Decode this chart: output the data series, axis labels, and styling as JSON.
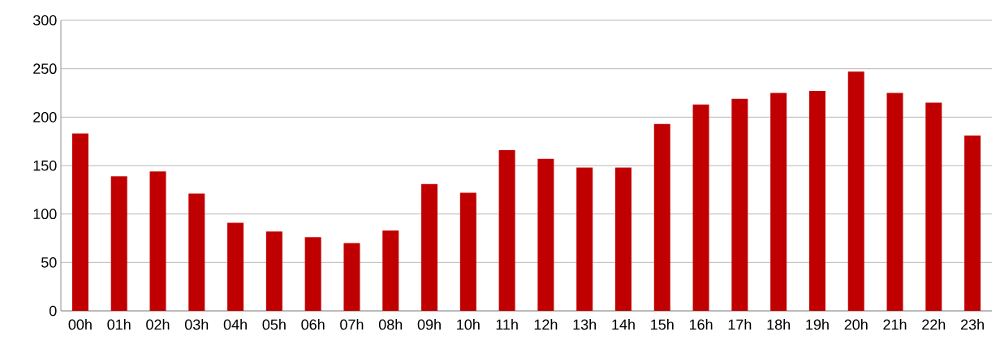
{
  "chart_data": {
    "type": "bar",
    "categories": [
      "00h",
      "01h",
      "02h",
      "03h",
      "04h",
      "05h",
      "06h",
      "07h",
      "08h",
      "09h",
      "10h",
      "11h",
      "12h",
      "13h",
      "14h",
      "15h",
      "16h",
      "17h",
      "18h",
      "19h",
      "20h",
      "21h",
      "22h",
      "23h"
    ],
    "values": [
      183,
      139,
      144,
      121,
      91,
      82,
      76,
      70,
      83,
      131,
      122,
      166,
      157,
      148,
      148,
      193,
      213,
      219,
      225,
      227,
      247,
      225,
      215,
      181
    ],
    "color": "#c00000",
    "ylim": [
      0,
      300
    ],
    "yticks": [
      0,
      50,
      100,
      150,
      200,
      250,
      300
    ],
    "grid": "y"
  }
}
